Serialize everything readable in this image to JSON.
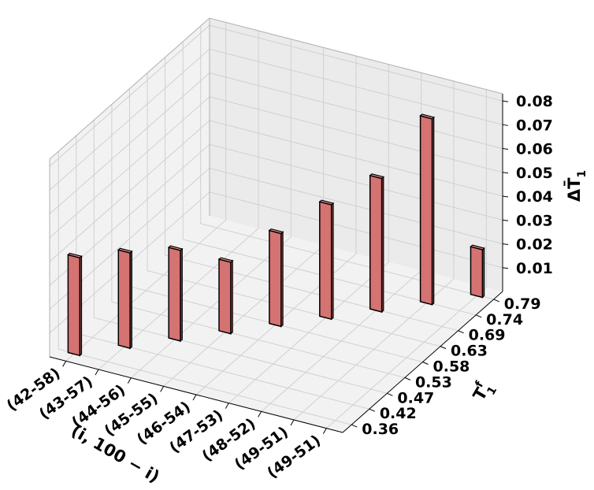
{
  "chart_data": {
    "type": "bar3d",
    "xlabel": "(i, 100 − i)",
    "ylabel_main": "T",
    "ylabel_sup": "f",
    "ylabel_sub": "1",
    "zlabel_main": "ΔT̄",
    "zlabel_sub": "1",
    "categories": [
      "(42-58)",
      "(43-57)",
      "(44-56)",
      "(45-55)",
      "(46-54)",
      "(47-53)",
      "(48-52)",
      "(49-51)",
      "(49-51)"
    ],
    "y_ticks": [
      "0.36",
      "0.42",
      "0.47",
      "0.53",
      "0.58",
      "0.63",
      "0.69",
      "0.74",
      "0.79"
    ],
    "y_values": [
      0.36,
      0.42,
      0.47,
      0.53,
      0.58,
      0.63,
      0.69,
      0.74,
      0.79
    ],
    "z_ticks": [
      "0.01",
      "0.02",
      "0.03",
      "0.04",
      "0.05",
      "0.06",
      "0.07",
      "0.08"
    ],
    "values": [
      0.041,
      0.04,
      0.038,
      0.03,
      0.039,
      0.048,
      0.056,
      0.078,
      0.02
    ],
    "zlim": [
      0,
      0.083
    ],
    "bar_color": "#d47372",
    "grid": true
  }
}
